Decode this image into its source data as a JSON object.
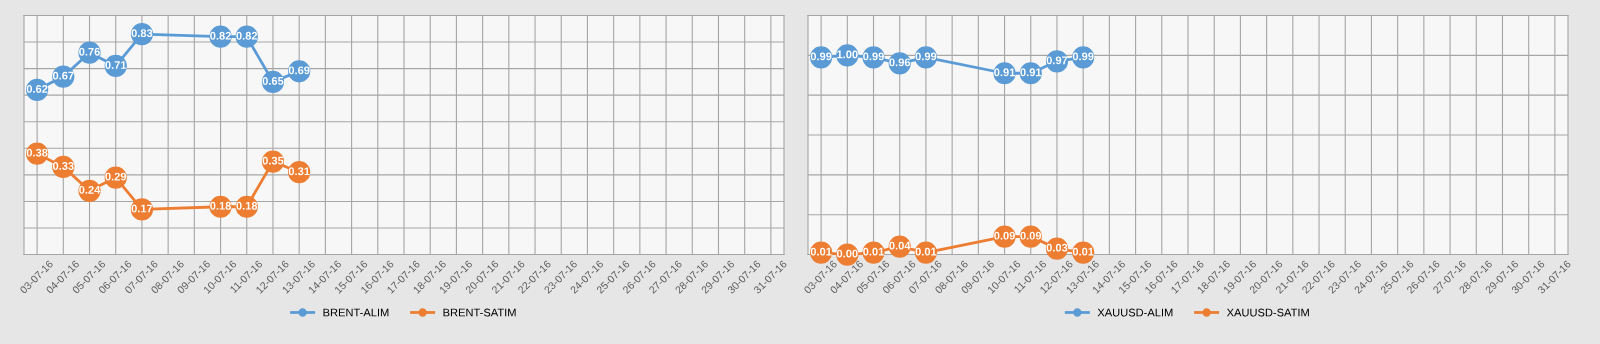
{
  "chart_data": [
    {
      "type": "line",
      "categories": [
        "03-07-16",
        "04-07-16",
        "05-07-16",
        "06-07-16",
        "07-07-16",
        "08-07-16",
        "09-07-16",
        "10-07-16",
        "11-07-16",
        "12-07-16",
        "13-07-16",
        "14-07-16",
        "15-07-16",
        "16-07-16",
        "17-07-16",
        "18-07-16",
        "19-07-16",
        "20-07-16",
        "21-07-16",
        "22-07-16",
        "23-07-16",
        "24-07-16",
        "25-07-16",
        "26-07-16",
        "27-07-16",
        "28-07-16",
        "29-07-16",
        "30-07-16",
        "31-07-16"
      ],
      "series": [
        {
          "name": "BRENT-ALIM",
          "color": "#5b9bd5",
          "values": [
            0.62,
            0.67,
            0.76,
            0.71,
            0.83,
            null,
            null,
            0.82,
            0.82,
            0.65,
            0.69,
            null,
            null,
            null,
            null,
            null,
            null,
            null,
            null,
            null,
            null,
            null,
            null,
            null,
            null,
            null,
            null,
            null,
            null
          ],
          "value_labels": [
            "0.62",
            "0.67",
            "0.76",
            "0.71",
            "0.83",
            null,
            null,
            "0.82",
            "0.82",
            "0.65",
            "0.69",
            null,
            null,
            null,
            null,
            null,
            null,
            null,
            null,
            null,
            null,
            null,
            null,
            null,
            null,
            null,
            null,
            null,
            null
          ]
        },
        {
          "name": "BRENT-SATIM",
          "color": "#ed7d31",
          "values": [
            0.38,
            0.33,
            0.24,
            0.29,
            0.17,
            null,
            null,
            0.18,
            0.18,
            0.35,
            0.31,
            null,
            null,
            null,
            null,
            null,
            null,
            null,
            null,
            null,
            null,
            null,
            null,
            null,
            null,
            null,
            null,
            null,
            null
          ],
          "value_labels": [
            "0.38",
            "0.33",
            "0.24",
            "0.29",
            "0.17",
            null,
            null,
            "0.18",
            "0.18",
            "0.35",
            "0.31",
            null,
            null,
            null,
            null,
            null,
            null,
            null,
            null,
            null,
            null,
            null,
            null,
            null,
            null,
            null,
            null,
            null,
            null
          ]
        }
      ],
      "ylim": [
        0,
        0.9
      ],
      "yticks": [
        {
          "value": 0,
          "label": null
        },
        {
          "value": 0.1,
          "label": null
        },
        {
          "value": 0.2,
          "label": null
        },
        {
          "value": 0.3,
          "label": null
        },
        {
          "value": 0.4,
          "label": null
        },
        {
          "value": 0.5,
          "label": null
        },
        {
          "value": 0.6,
          "label": null
        },
        {
          "value": 0.7,
          "label": null
        },
        {
          "value": 0.8,
          "label": null
        },
        {
          "value": 0.9,
          "label": null
        }
      ],
      "tick_labels": "x",
      "grid": true,
      "legend": "bottom",
      "marker": "circle",
      "line_style": "solid"
    },
    {
      "type": "line",
      "categories": [
        "03-07-16",
        "04-07-16",
        "05-07-16",
        "06-07-16",
        "07-07-16",
        "08-07-16",
        "09-07-16",
        "10-07-16",
        "11-07-16",
        "12-07-16",
        "13-07-16",
        "14-07-16",
        "15-07-16",
        "16-07-16",
        "17-07-16",
        "18-07-16",
        "19-07-16",
        "20-07-16",
        "21-07-16",
        "22-07-16",
        "23-07-16",
        "24-07-16",
        "25-07-16",
        "26-07-16",
        "27-07-16",
        "28-07-16",
        "29-07-16",
        "30-07-16",
        "31-07-16"
      ],
      "series": [
        {
          "name": "XAUUSD-ALIM",
          "color": "#5b9bd5",
          "values": [
            0.99,
            1.0,
            0.99,
            0.96,
            0.99,
            null,
            null,
            0.91,
            0.91,
            0.97,
            0.99,
            null,
            null,
            null,
            null,
            null,
            null,
            null,
            null,
            null,
            null,
            null,
            null,
            null,
            null,
            null,
            null,
            null,
            null
          ],
          "value_labels": [
            "0.99",
            "1.00",
            "0.99",
            "0.96",
            "0.99",
            null,
            null,
            "0.91",
            "0.91",
            "0.97",
            "0.99",
            null,
            null,
            null,
            null,
            null,
            null,
            null,
            null,
            null,
            null,
            null,
            null,
            null,
            null,
            null,
            null,
            null,
            null
          ]
        },
        {
          "name": "XAUUSD-SATIM",
          "color": "#ed7d31",
          "values": [
            0.01,
            0.0,
            0.01,
            0.04,
            0.01,
            null,
            null,
            0.09,
            0.09,
            0.03,
            0.01,
            null,
            null,
            null,
            null,
            null,
            null,
            null,
            null,
            null,
            null,
            null,
            null,
            null,
            null,
            null,
            null,
            null,
            null
          ],
          "value_labels": [
            "0.01",
            "0.00",
            "0.01",
            "0.04",
            "0.01",
            null,
            null,
            "0.09",
            "0.09",
            "0.03",
            "0.01",
            null,
            null,
            null,
            null,
            null,
            null,
            null,
            null,
            null,
            null,
            null,
            null,
            null,
            null,
            null,
            null,
            null,
            null
          ]
        }
      ],
      "ylim": [
        0,
        1.2
      ],
      "yticks": [
        {
          "value": 0,
          "label": null
        },
        {
          "value": 0.2,
          "label": null
        },
        {
          "value": 0.4,
          "label": null
        },
        {
          "value": 0.6,
          "label": null
        },
        {
          "value": 0.8,
          "label": null
        },
        {
          "value": 1.0,
          "label": null
        },
        {
          "value": 1.2,
          "label": null
        }
      ],
      "tick_labels": "x",
      "grid": true,
      "legend": "bottom",
      "marker": "circle",
      "line_style": "solid"
    }
  ]
}
